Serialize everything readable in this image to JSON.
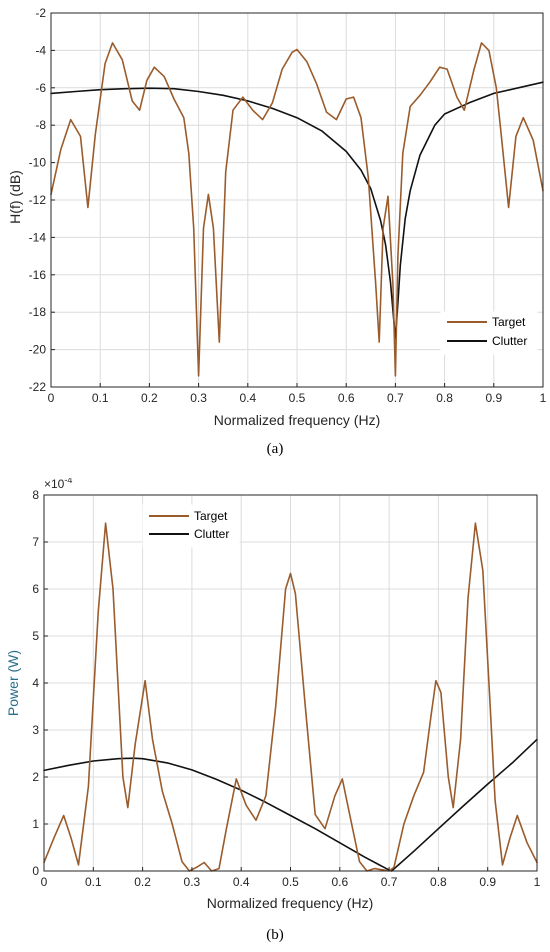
{
  "chart_data": [
    {
      "type": "line",
      "panel_caption": "(a)",
      "xlabel": "Normalized frequency (Hz)",
      "ylabel": "H(f) (dB)",
      "xlim": [
        0,
        1
      ],
      "ylim": [
        -22,
        -2
      ],
      "xticks": [
        0,
        0.1,
        0.2,
        0.3,
        0.4,
        0.5,
        0.6,
        0.7,
        0.8,
        0.9,
        1
      ],
      "xtick_labels": [
        "0",
        "0.1",
        "0.2",
        "0.3",
        "0.4",
        "0.5",
        "0.6",
        "0.7",
        "0.8",
        "0.9",
        "1"
      ],
      "yticks": [
        -22,
        -20,
        -18,
        -16,
        -14,
        -12,
        -10,
        -8,
        -6,
        -4,
        -2
      ],
      "ytick_labels": [
        "-22",
        "-20",
        "-18",
        "-16",
        "-14",
        "-12",
        "-10",
        "-8",
        "-6",
        "-4",
        "-2"
      ],
      "grid": true,
      "legend_position": "bottom-right",
      "series": [
        {
          "name": "Target",
          "color": "#9a5c2c",
          "x": [
            0,
            0.02,
            0.04,
            0.06,
            0.075,
            0.09,
            0.11,
            0.125,
            0.145,
            0.165,
            0.18,
            0.195,
            0.21,
            0.23,
            0.25,
            0.27,
            0.28,
            0.29,
            0.3,
            0.31,
            0.32,
            0.33,
            0.342,
            0.355,
            0.37,
            0.39,
            0.41,
            0.43,
            0.45,
            0.47,
            0.49,
            0.5,
            0.52,
            0.54,
            0.56,
            0.58,
            0.6,
            0.615,
            0.63,
            0.645,
            0.66,
            0.667,
            0.675,
            0.685,
            0.695,
            0.7,
            0.705,
            0.715,
            0.73,
            0.75,
            0.77,
            0.79,
            0.805,
            0.825,
            0.84,
            0.86,
            0.875,
            0.89,
            0.905,
            0.915,
            0.93,
            0.945,
            0.96,
            0.98,
            1
          ],
          "y": [
            -11.7,
            -9.3,
            -7.7,
            -8.6,
            -12.4,
            -8.5,
            -4.7,
            -3.6,
            -4.5,
            -6.7,
            -7.2,
            -5.6,
            -4.9,
            -5.4,
            -6.6,
            -7.6,
            -9.5,
            -13.5,
            -21.4,
            -13.5,
            -11.7,
            -13.5,
            -19.6,
            -10.5,
            -7.2,
            -6.5,
            -7.2,
            -7.7,
            -6.8,
            -5.0,
            -4.1,
            -3.95,
            -4.6,
            -5.8,
            -7.3,
            -7.7,
            -6.6,
            -6.5,
            -7.6,
            -10.8,
            -16.5,
            -19.6,
            -13.5,
            -11.8,
            -16.5,
            -21.4,
            -15.0,
            -9.5,
            -7.0,
            -6.4,
            -5.7,
            -4.9,
            -5.0,
            -6.5,
            -7.2,
            -5.0,
            -3.6,
            -4.0,
            -6.0,
            -8.5,
            -12.4,
            -8.6,
            -7.6,
            -8.8,
            -11.5
          ]
        },
        {
          "name": "Clutter",
          "color": "#111111",
          "x": [
            0,
            0.05,
            0.1,
            0.15,
            0.2,
            0.25,
            0.3,
            0.35,
            0.4,
            0.45,
            0.5,
            0.55,
            0.6,
            0.63,
            0.65,
            0.67,
            0.68,
            0.69,
            0.695,
            0.7,
            0.705,
            0.71,
            0.72,
            0.73,
            0.75,
            0.78,
            0.8,
            0.85,
            0.9,
            0.95,
            1
          ],
          "y": [
            -6.3,
            -6.2,
            -6.1,
            -6.05,
            -6.02,
            -6.05,
            -6.2,
            -6.4,
            -6.7,
            -7.1,
            -7.6,
            -8.3,
            -9.4,
            -10.4,
            -11.4,
            -13.1,
            -14.4,
            -16.4,
            -17.9,
            -19.4,
            -17.5,
            -15.5,
            -13.0,
            -11.5,
            -9.6,
            -8.0,
            -7.4,
            -6.8,
            -6.3,
            -6.0,
            -5.7
          ]
        }
      ]
    },
    {
      "type": "line",
      "panel_caption": "(b)",
      "xlabel": "Normalized frequency (Hz)",
      "ylabel": "Power (W)",
      "exponent_label": "×10",
      "exponent_power": "-4",
      "xlim": [
        0,
        1
      ],
      "ylim": [
        0,
        8
      ],
      "xticks": [
        0,
        0.1,
        0.2,
        0.3,
        0.4,
        0.5,
        0.6,
        0.7,
        0.8,
        0.9,
        1
      ],
      "xtick_labels": [
        "0",
        "0.1",
        "0.2",
        "0.3",
        "0.4",
        "0.5",
        "0.6",
        "0.7",
        "0.8",
        "0.9",
        "1"
      ],
      "yticks": [
        0,
        1,
        2,
        3,
        4,
        5,
        6,
        7,
        8
      ],
      "ytick_labels": [
        "0",
        "1",
        "2",
        "3",
        "4",
        "5",
        "6",
        "7",
        "8"
      ],
      "grid": true,
      "legend_position": "top-left",
      "series": [
        {
          "name": "Target",
          "color": "#9a5c2c",
          "x": [
            0,
            0.02,
            0.04,
            0.055,
            0.07,
            0.09,
            0.11,
            0.125,
            0.14,
            0.16,
            0.17,
            0.185,
            0.205,
            0.22,
            0.24,
            0.26,
            0.28,
            0.295,
            0.31,
            0.325,
            0.34,
            0.355,
            0.37,
            0.39,
            0.41,
            0.43,
            0.45,
            0.47,
            0.49,
            0.5,
            0.51,
            0.53,
            0.55,
            0.57,
            0.59,
            0.605,
            0.62,
            0.64,
            0.655,
            0.67,
            0.69,
            0.7,
            0.71,
            0.73,
            0.75,
            0.77,
            0.785,
            0.795,
            0.805,
            0.82,
            0.83,
            0.845,
            0.86,
            0.875,
            0.89,
            0.905,
            0.915,
            0.93,
            0.945,
            0.96,
            0.98,
            1
          ],
          "y": [
            0.18,
            0.7,
            1.18,
            0.7,
            0.13,
            1.8,
            5.5,
            7.4,
            6.0,
            2.0,
            1.35,
            2.7,
            4.05,
            2.8,
            1.7,
            1.0,
            0.2,
            0.0,
            0.08,
            0.18,
            0.0,
            0.05,
            0.9,
            1.96,
            1.4,
            1.08,
            1.6,
            3.5,
            6.0,
            6.33,
            5.9,
            3.5,
            1.2,
            0.9,
            1.6,
            1.96,
            1.2,
            0.2,
            0.0,
            0.05,
            0.02,
            0.0,
            0.08,
            1.0,
            1.6,
            2.1,
            3.3,
            4.05,
            3.8,
            2.0,
            1.35,
            2.8,
            5.8,
            7.4,
            6.4,
            3.5,
            1.5,
            0.13,
            0.7,
            1.18,
            0.6,
            0.18
          ]
        },
        {
          "name": "Clutter",
          "color": "#111111",
          "x": [
            0,
            0.05,
            0.1,
            0.15,
            0.18,
            0.2,
            0.25,
            0.3,
            0.35,
            0.4,
            0.45,
            0.5,
            0.55,
            0.6,
            0.65,
            0.7,
            0.705,
            0.75,
            0.8,
            0.85,
            0.9,
            0.95,
            1
          ],
          "y": [
            2.14,
            2.25,
            2.34,
            2.39,
            2.4,
            2.39,
            2.3,
            2.15,
            1.95,
            1.72,
            1.46,
            1.18,
            0.9,
            0.6,
            0.3,
            0.02,
            0.0,
            0.42,
            0.9,
            1.38,
            1.85,
            2.3,
            2.8
          ]
        }
      ]
    }
  ]
}
